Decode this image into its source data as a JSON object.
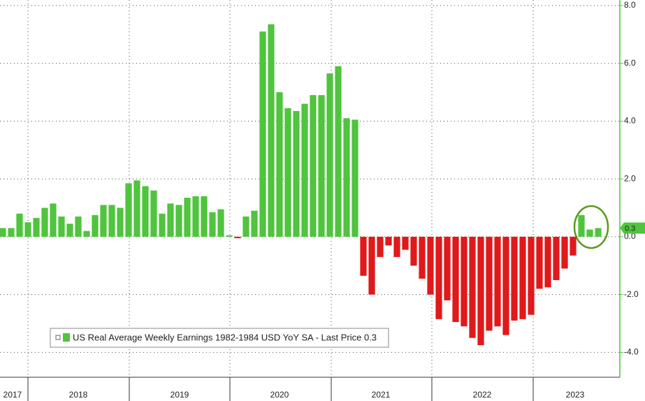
{
  "chart_data": {
    "type": "bar",
    "series": [
      {
        "name": "US Real Average Weekly Earnings 1982-1984 USD YoY SA - Last Price 0.3",
        "color": "#4fc43d",
        "negative_color": "#e0191b",
        "values": [
          0.3,
          0.3,
          0.8,
          0.5,
          0.65,
          1.0,
          1.15,
          0.7,
          0.45,
          0.7,
          0.2,
          0.75,
          1.1,
          1.1,
          1.0,
          1.85,
          1.95,
          1.75,
          1.6,
          0.8,
          1.15,
          1.1,
          1.35,
          1.4,
          1.4,
          0.85,
          0.95,
          0.05,
          -0.05,
          0.7,
          0.9,
          7.1,
          7.35,
          5.0,
          4.45,
          4.35,
          4.6,
          4.9,
          4.9,
          5.65,
          5.9,
          4.1,
          4.05,
          -1.35,
          -2.0,
          -0.7,
          -0.3,
          -0.7,
          -0.45,
          -1.0,
          -1.45,
          -2.0,
          -2.85,
          -2.2,
          -2.95,
          -3.1,
          -3.5,
          -3.75,
          -3.25,
          -3.1,
          -3.4,
          -2.9,
          -2.85,
          -2.7,
          -1.8,
          -1.75,
          -1.5,
          -1.1,
          -0.65,
          0.75,
          0.25,
          0.3
        ]
      }
    ],
    "period_labels": [
      "2017",
      "2018",
      "2019",
      "2020",
      "2021",
      "2022",
      "2023"
    ],
    "last_price": 0.3,
    "ylim": [
      -4.86,
      8.19
    ],
    "yticks": [
      {
        "value": 8,
        "label": "8.0"
      },
      {
        "value": 6,
        "label": "6.0"
      },
      {
        "value": 4,
        "label": "4.0"
      },
      {
        "value": 2,
        "label": "2.0"
      },
      {
        "value": 0,
        "label": "0.0"
      },
      {
        "value": -2,
        "label": "-2.0"
      },
      {
        "value": -4,
        "label": "-4.0"
      }
    ],
    "grid": true,
    "axis_color": "#4fc43d"
  }
}
